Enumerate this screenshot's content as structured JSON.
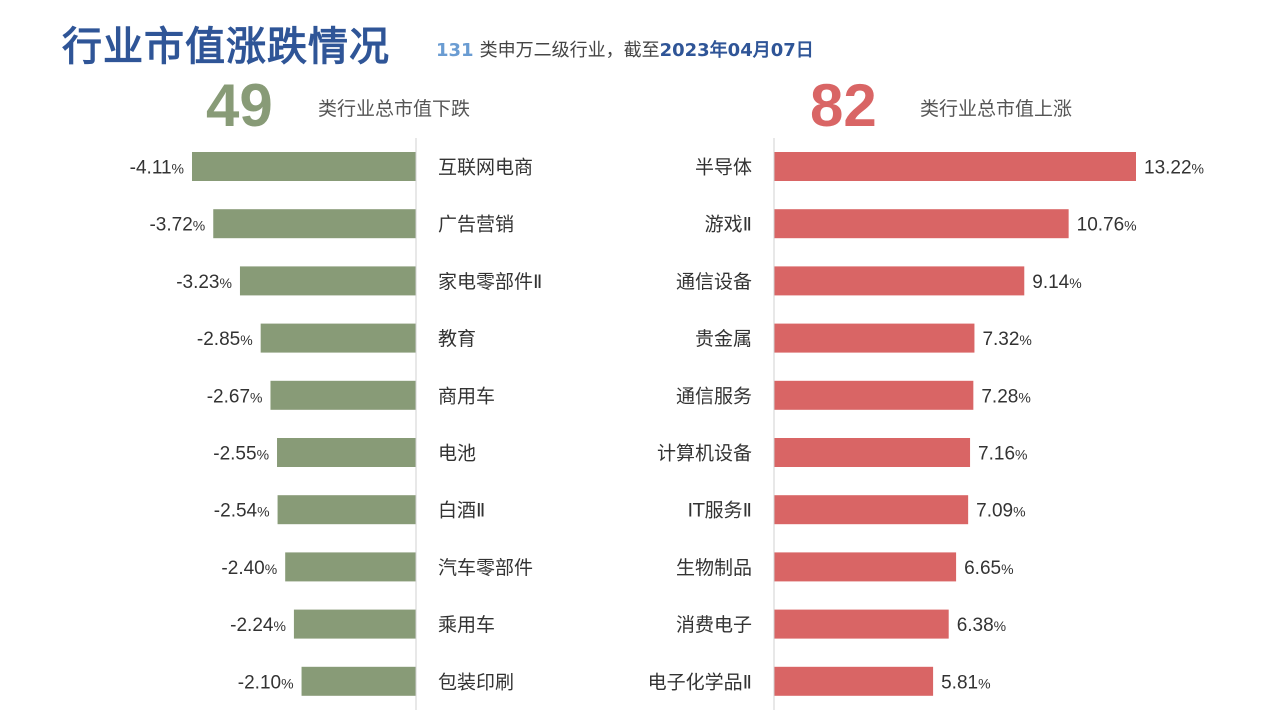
{
  "header": {
    "title": "行业市值涨跌情况",
    "subtitle_count": "131",
    "subtitle_text": "类申万二级行业，截至",
    "subtitle_date": "2023年04月07日"
  },
  "summary": {
    "down_count": "49",
    "down_label": "类行业总市值下跌",
    "up_count": "82",
    "up_label": "类行业总市值上涨"
  },
  "colors": {
    "title": "#2F5597",
    "down": "#889B77",
    "up": "#D96565",
    "down_num": "#889B77",
    "up_num": "#D96565"
  },
  "chart_data": [
    {
      "type": "bar",
      "orientation": "horizontal",
      "unit": "%",
      "categories": [
        "互联网电商",
        "广告营销",
        "家电零部件Ⅱ",
        "教育",
        "商用车",
        "电池",
        "白酒Ⅱ",
        "汽车零部件",
        "乘用车",
        "包装印刷"
      ],
      "values": [
        -4.11,
        -3.72,
        -3.23,
        -2.85,
        -2.67,
        -2.55,
        -2.54,
        -2.4,
        -2.24,
        -2.1
      ]
    },
    {
      "type": "bar",
      "orientation": "horizontal",
      "unit": "%",
      "categories": [
        "半导体",
        "游戏Ⅱ",
        "通信设备",
        "贵金属",
        "通信服务",
        "计算机设备",
        "IT服务Ⅱ",
        "生物制品",
        "消费电子",
        "电子化学品Ⅱ"
      ],
      "values": [
        13.22,
        10.76,
        9.14,
        7.32,
        7.28,
        7.16,
        7.09,
        6.65,
        6.38,
        5.81
      ]
    }
  ]
}
